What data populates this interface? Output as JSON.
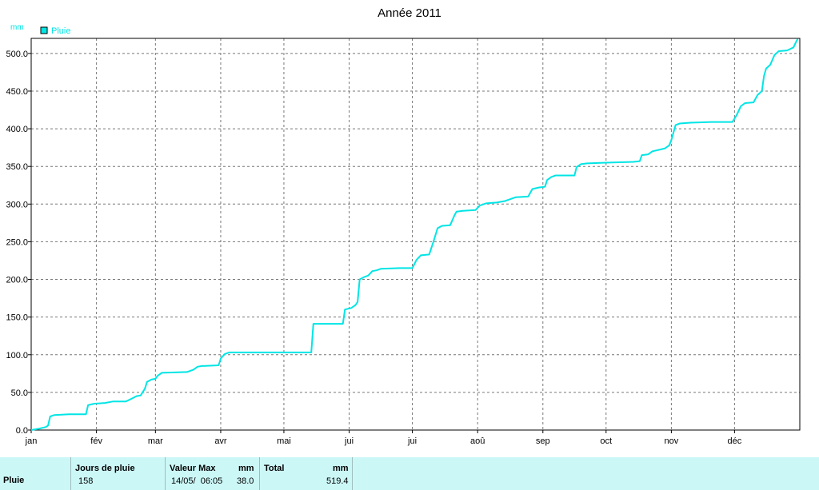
{
  "chart_data": {
    "type": "line",
    "title": "Année 2011",
    "ylabel": "mm",
    "legend": "top-left",
    "ylim": [
      0,
      520
    ],
    "yticks": [
      "0.0",
      "50.0",
      "100.0",
      "150.0",
      "200.0",
      "250.0",
      "300.0",
      "350.0",
      "400.0",
      "450.0",
      "500.0"
    ],
    "xticks": [
      "jan",
      "fév",
      "mar",
      "avr",
      "mai",
      "jui",
      "jui",
      "aoû",
      "sep",
      "oct",
      "nov",
      "déc"
    ],
    "grid": true,
    "series": [
      {
        "name": "Pluie",
        "color": "#00e5e5",
        "points": [
          [
            "2011-01-01",
            0
          ],
          [
            "2011-01-05",
            2
          ],
          [
            "2011-01-08",
            4
          ],
          [
            "2011-01-09",
            6
          ],
          [
            "2011-01-10",
            18
          ],
          [
            "2011-01-12",
            20
          ],
          [
            "2011-01-19",
            21
          ],
          [
            "2011-01-27",
            21
          ],
          [
            "2011-01-28",
            33
          ],
          [
            "2011-01-31",
            35
          ],
          [
            "2011-02-05",
            36
          ],
          [
            "2011-02-09",
            38
          ],
          [
            "2011-02-15",
            38
          ],
          [
            "2011-02-18",
            42
          ],
          [
            "2011-02-20",
            45
          ],
          [
            "2011-02-22",
            46
          ],
          [
            "2011-02-24",
            55
          ],
          [
            "2011-02-25",
            64
          ],
          [
            "2011-02-27",
            67
          ],
          [
            "2011-03-01",
            68
          ],
          [
            "2011-03-02",
            72
          ],
          [
            "2011-03-04",
            76
          ],
          [
            "2011-03-16",
            77
          ],
          [
            "2011-03-19",
            80
          ],
          [
            "2011-03-21",
            84
          ],
          [
            "2011-03-23",
            85
          ],
          [
            "2011-03-31",
            86
          ],
          [
            "2011-04-01",
            95
          ],
          [
            "2011-04-03",
            101
          ],
          [
            "2011-04-05",
            103
          ],
          [
            "2011-05-14",
            103
          ],
          [
            "2011-05-15",
            141
          ],
          [
            "2011-05-29",
            141
          ],
          [
            "2011-05-30",
            160
          ],
          [
            "2011-06-02",
            162
          ],
          [
            "2011-06-04",
            166
          ],
          [
            "2011-06-05",
            170
          ],
          [
            "2011-06-06",
            200
          ],
          [
            "2011-06-08",
            203
          ],
          [
            "2011-06-10",
            205
          ],
          [
            "2011-06-12",
            211
          ],
          [
            "2011-06-14",
            212
          ],
          [
            "2011-06-16",
            214
          ],
          [
            "2011-06-25",
            215
          ],
          [
            "2011-07-01",
            215
          ],
          [
            "2011-07-03",
            226
          ],
          [
            "2011-07-05",
            232
          ],
          [
            "2011-07-09",
            233
          ],
          [
            "2011-07-11",
            250
          ],
          [
            "2011-07-13",
            268
          ],
          [
            "2011-07-15",
            271
          ],
          [
            "2011-07-19",
            272
          ],
          [
            "2011-07-21",
            285
          ],
          [
            "2011-07-22",
            290
          ],
          [
            "2011-07-25",
            291
          ],
          [
            "2011-07-31",
            292
          ],
          [
            "2011-08-02",
            298
          ],
          [
            "2011-08-05",
            301
          ],
          [
            "2011-08-10",
            302
          ],
          [
            "2011-08-14",
            304
          ],
          [
            "2011-08-17",
            307
          ],
          [
            "2011-08-19",
            309
          ],
          [
            "2011-08-25",
            310
          ],
          [
            "2011-08-27",
            320
          ],
          [
            "2011-08-30",
            322
          ],
          [
            "2011-09-02",
            323
          ],
          [
            "2011-09-03",
            332
          ],
          [
            "2011-09-05",
            336
          ],
          [
            "2011-09-07",
            338
          ],
          [
            "2011-09-12",
            338
          ],
          [
            "2011-09-16",
            338
          ],
          [
            "2011-09-17",
            349
          ],
          [
            "2011-09-19",
            353
          ],
          [
            "2011-09-22",
            354
          ],
          [
            "2011-10-01",
            355
          ],
          [
            "2011-10-14",
            356
          ],
          [
            "2011-10-17",
            357
          ],
          [
            "2011-10-18",
            365
          ],
          [
            "2011-10-21",
            366
          ],
          [
            "2011-10-23",
            370
          ],
          [
            "2011-10-26",
            372
          ],
          [
            "2011-10-29",
            374
          ],
          [
            "2011-10-31",
            378
          ],
          [
            "2011-11-01",
            385
          ],
          [
            "2011-11-03",
            405
          ],
          [
            "2011-11-05",
            407
          ],
          [
            "2011-11-10",
            408
          ],
          [
            "2011-11-20",
            409
          ],
          [
            "2011-11-30",
            409
          ],
          [
            "2011-12-02",
            418
          ],
          [
            "2011-12-04",
            430
          ],
          [
            "2011-12-06",
            434
          ],
          [
            "2011-12-10",
            435
          ],
          [
            "2011-12-12",
            445
          ],
          [
            "2011-12-14",
            450
          ],
          [
            "2011-12-15",
            470
          ],
          [
            "2011-12-16",
            480
          ],
          [
            "2011-12-18",
            485
          ],
          [
            "2011-12-20",
            498
          ],
          [
            "2011-12-22",
            503
          ],
          [
            "2011-12-26",
            504
          ],
          [
            "2011-12-29",
            508
          ],
          [
            "2011-12-30",
            514
          ],
          [
            "2011-12-31",
            519.4
          ]
        ]
      }
    ]
  },
  "footer": {
    "row_label": "Pluie",
    "jours_label": "Jours de pluie",
    "jours_value": "158",
    "vmax_label": "Valeur Max",
    "vmax_unit": "mm",
    "vmax_date": "14/05/  06:05",
    "vmax_value": "38.0",
    "total_label": "Total",
    "total_unit": "mm",
    "total_value": "519.4"
  }
}
